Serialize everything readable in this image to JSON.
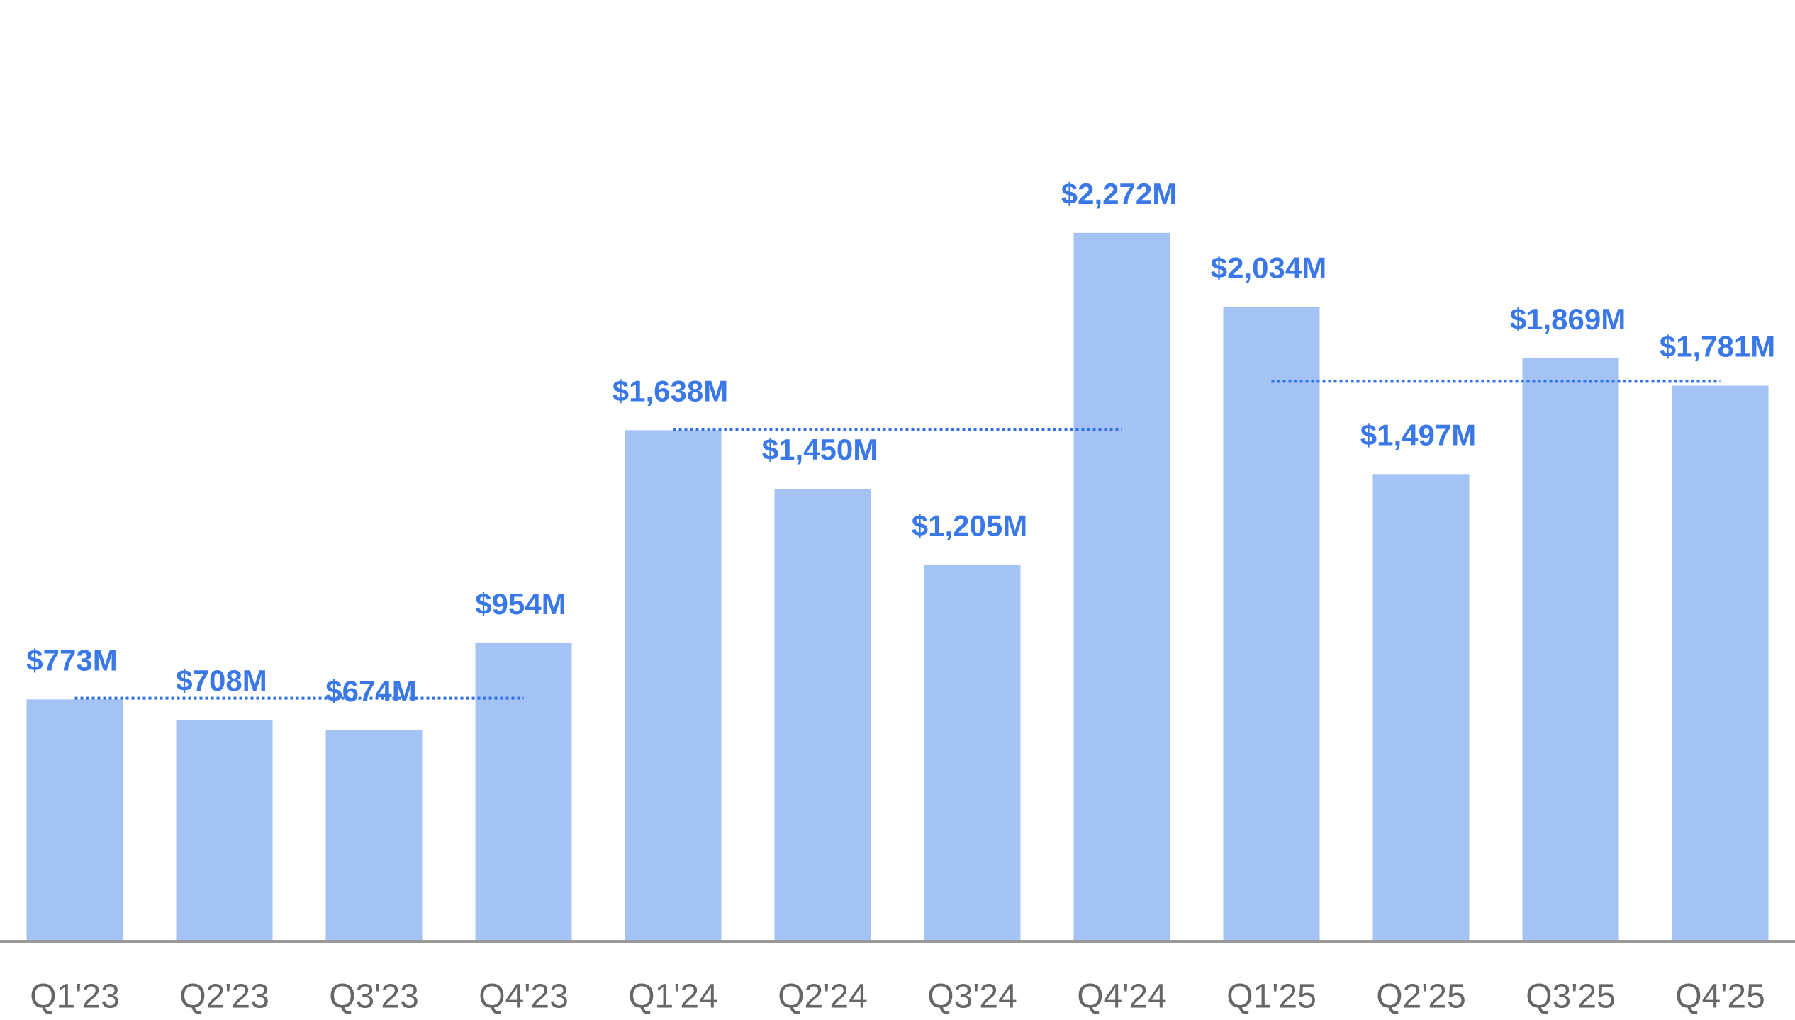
{
  "chart_data": {
    "type": "bar",
    "categories": [
      "Q1'23",
      "Q2'23",
      "Q3'23",
      "Q4'23",
      "Q1'24",
      "Q2'24",
      "Q3'24",
      "Q4'24",
      "Q1'25",
      "Q2'25",
      "Q3'25",
      "Q4'25"
    ],
    "values": [
      773,
      708,
      674,
      954,
      1638,
      1450,
      1205,
      2272,
      2034,
      1497,
      1869,
      1781
    ],
    "value_labels": [
      "$773M",
      "$708M",
      "$674M",
      "$954M",
      "$1,638M",
      "$1,450M",
      "$1,205M",
      "$2,272M",
      "$2,034M",
      "$1,497M",
      "$1,869M",
      "$1,781M"
    ],
    "color": "#a4c2f4",
    "label_color": "#3b78e7",
    "ylim": [
      0,
      3000
    ],
    "reference_lines": [
      {
        "value": 777,
        "from": "Q1'23",
        "to": "Q4'23",
        "color": "#2f6fe8"
      },
      {
        "value": 1641,
        "from": "Q1'24",
        "to": "Q4'24",
        "color": "#2f6fe8"
      },
      {
        "value": 1795,
        "from": "Q1'25",
        "to": "Q4'25",
        "color": "#2f6fe8"
      }
    ]
  }
}
